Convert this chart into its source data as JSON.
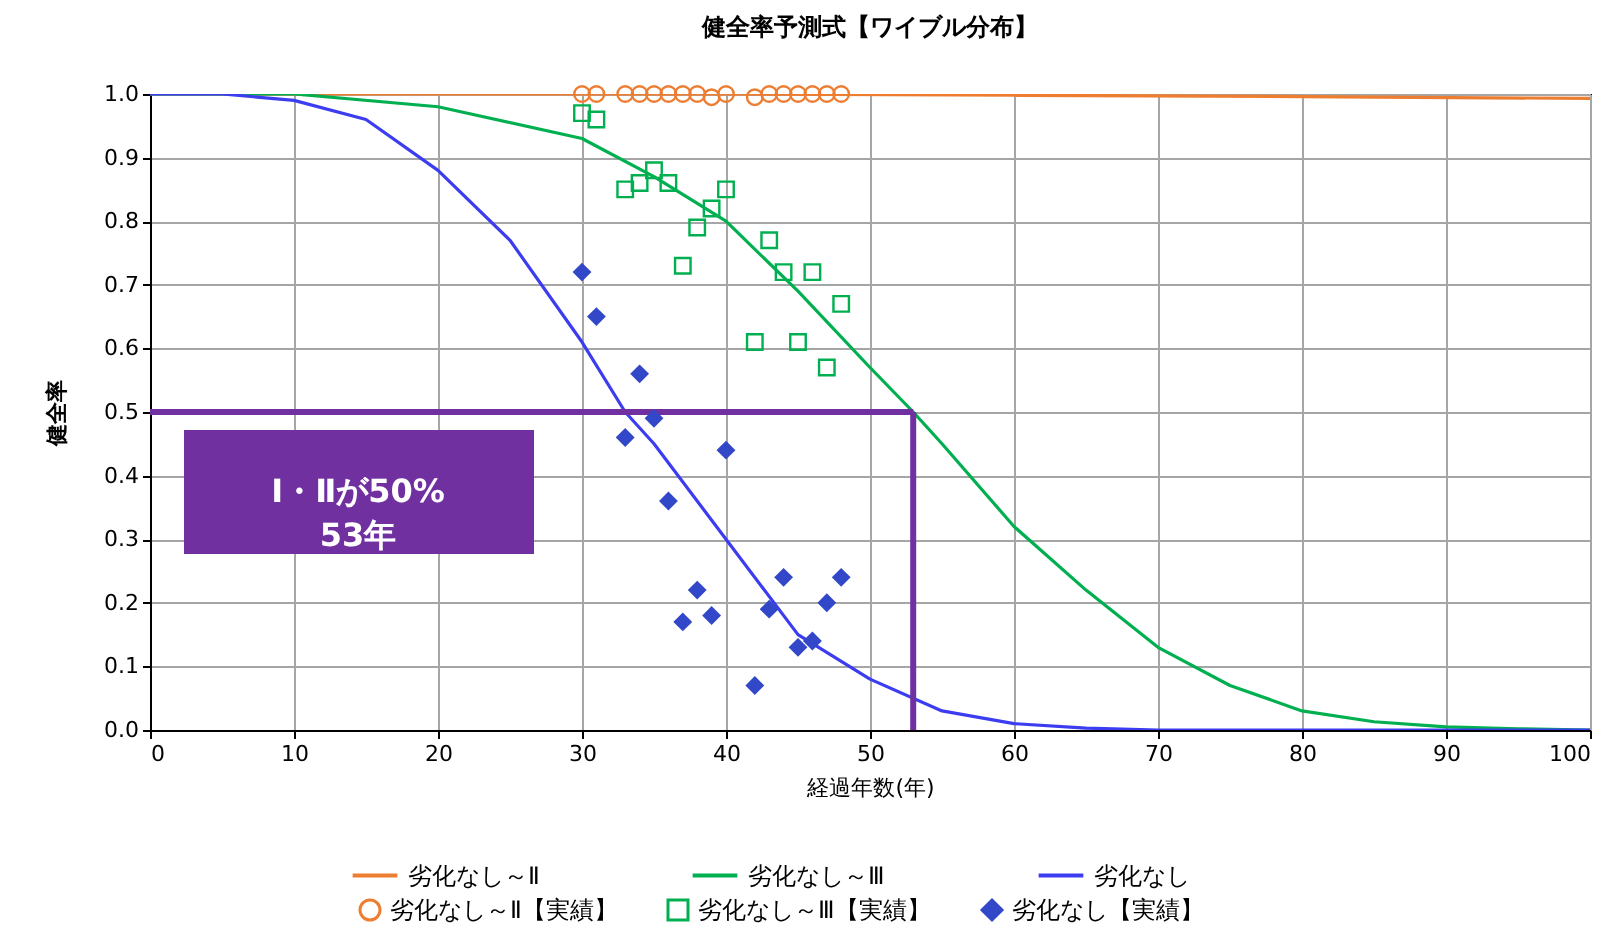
{
  "chart_data": {
    "type": "line",
    "title": "健全率予測式【ワイブル分布】",
    "xlabel": "経過年数(年)",
    "ylabel": "健全率",
    "xlim": [
      0,
      100
    ],
    "xticks": [
      0,
      10,
      20,
      30,
      40,
      50,
      60,
      70,
      80,
      90,
      100
    ],
    "ylim": [
      0,
      1
    ],
    "yticks": [
      {
        "value": 0,
        "label": "0.0"
      },
      {
        "value": 0.1,
        "label": "0.1"
      },
      {
        "value": 0.2,
        "label": "0.2"
      },
      {
        "value": 0.3,
        "label": "0.3"
      },
      {
        "value": 0.4,
        "label": "0.4"
      },
      {
        "value": 0.5,
        "label": "0.5"
      },
      {
        "value": 0.6,
        "label": "0.6"
      },
      {
        "value": 0.7,
        "label": "0.7"
      },
      {
        "value": 0.8,
        "label": "0.8"
      },
      {
        "value": 0.9,
        "label": "0.9"
      },
      {
        "value": 1,
        "label": "1.0"
      }
    ],
    "grid": true,
    "legend": "bottom",
    "series": [
      {
        "name": "劣化なし～Ⅱ",
        "type": "line",
        "color": "#ed7d31",
        "x": [
          0,
          20,
          40,
          60,
          80,
          100
        ],
        "values": [
          1,
          1,
          1,
          0.998,
          0.996,
          0.993
        ]
      },
      {
        "name": "劣化なし～Ⅲ",
        "type": "line",
        "color": "#00b050",
        "x": [
          0,
          10,
          20,
          30,
          35,
          40,
          45,
          50,
          53,
          55,
          60,
          65,
          70,
          75,
          80,
          85,
          90,
          95,
          100
        ],
        "values": [
          1,
          1,
          0.98,
          0.93,
          0.87,
          0.8,
          0.69,
          0.57,
          0.5,
          0.45,
          0.32,
          0.22,
          0.13,
          0.07,
          0.03,
          0.013,
          0.005,
          0.002,
          0
        ]
      },
      {
        "name": "劣化なし",
        "type": "line",
        "color": "#3c3cf0",
        "x": [
          0,
          5,
          10,
          15,
          20,
          25,
          30,
          33,
          35,
          40,
          45,
          50,
          55,
          60,
          65,
          70,
          100
        ],
        "values": [
          1,
          1,
          0.99,
          0.96,
          0.88,
          0.77,
          0.61,
          0.5,
          0.45,
          0.3,
          0.15,
          0.08,
          0.03,
          0.01,
          0.003,
          0,
          0
        ]
      },
      {
        "name": "劣化なし～Ⅱ【実績】",
        "type": "scatter",
        "marker": "circle",
        "color": "#ed7d31",
        "x": [
          30,
          31,
          33,
          34,
          35,
          36,
          37,
          38,
          39,
          40,
          42,
          43,
          44,
          45,
          46,
          47,
          48
        ],
        "values": [
          1,
          1,
          1,
          1,
          1,
          1,
          1,
          1,
          0.995,
          1,
          0.995,
          1,
          1,
          1,
          1,
          1,
          1
        ]
      },
      {
        "name": "劣化なし～Ⅲ【実績】",
        "type": "scatter",
        "marker": "square",
        "color": "#00b050",
        "x": [
          30,
          31,
          33,
          34,
          35,
          36,
          37,
          38,
          39,
          40,
          42,
          43,
          44,
          45,
          46,
          47,
          48
        ],
        "values": [
          0.97,
          0.96,
          0.85,
          0.86,
          0.88,
          0.86,
          0.73,
          0.79,
          0.82,
          0.85,
          0.61,
          0.77,
          0.72,
          0.61,
          0.72,
          0.57,
          0.67
        ]
      },
      {
        "name": "劣化なし【実績】",
        "type": "scatter",
        "marker": "diamond",
        "color": "#3348c8",
        "x": [
          30,
          31,
          33,
          34,
          35,
          36,
          37,
          38,
          39,
          40,
          42,
          43,
          44,
          45,
          46,
          47,
          48
        ],
        "values": [
          0.72,
          0.65,
          0.46,
          0.56,
          0.49,
          0.36,
          0.17,
          0.22,
          0.18,
          0.44,
          0.07,
          0.19,
          0.24,
          0.13,
          0.14,
          0.2,
          0.24
        ]
      }
    ],
    "ref_lines": [
      {
        "axis": "y",
        "value": 0.5,
        "color": "#7030a0"
      },
      {
        "axis": "x",
        "value": 53,
        "color": "#7030a0"
      }
    ],
    "annotations": [
      "Ⅰ・Ⅱが50%\n53年"
    ]
  }
}
